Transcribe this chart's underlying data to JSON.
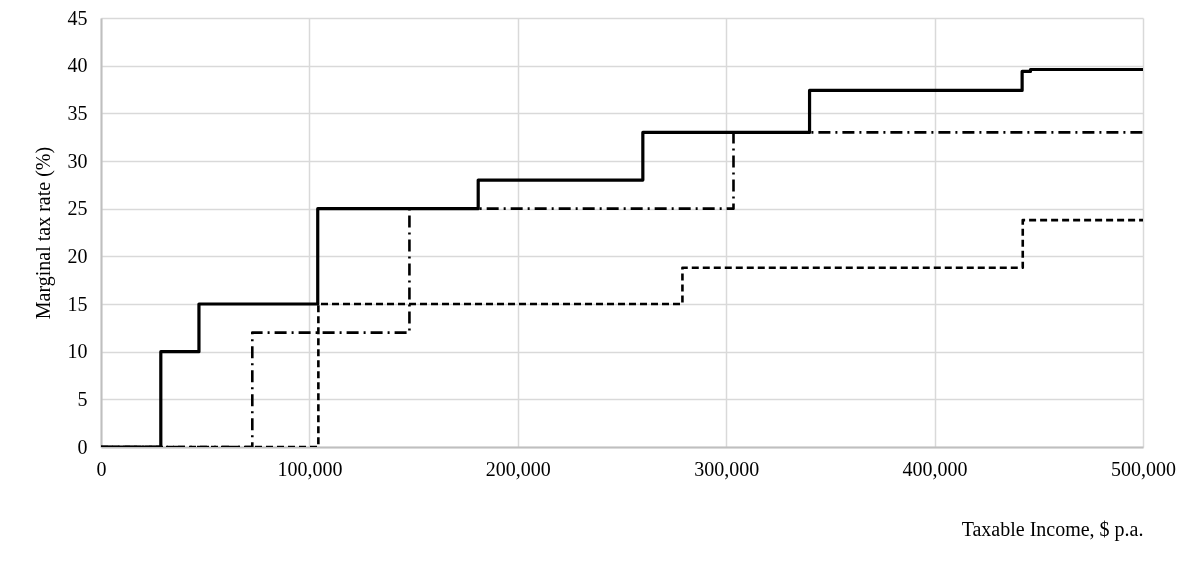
{
  "chart_data": {
    "type": "step",
    "xlabel": "Taxable Income, $ p.a.",
    "ylabel": "Marginal tax rate (%)",
    "xlim": [
      0,
      500000
    ],
    "xticks": [
      0,
      {
        "value": 100000,
        "label": "100,000"
      },
      {
        "value": 200000,
        "label": "200,000"
      },
      {
        "value": 300000,
        "label": "300,000"
      },
      {
        "value": 400000,
        "label": "400,000"
      },
      {
        "value": 500000,
        "label": "500,000"
      }
    ],
    "ylim": [
      0,
      45
    ],
    "yticks": [
      0,
      5,
      10,
      15,
      20,
      25,
      30,
      35,
      40,
      45
    ],
    "grid": true,
    "series": [
      {
        "color": "#000000",
        "line_style": "solid",
        "x": [
          0,
          28700,
          47000,
          104000,
          181000,
          260000,
          340000,
          442000,
          446000,
          500000
        ],
        "values": [
          0,
          10,
          15,
          25,
          28,
          33,
          37.4,
          39.4,
          39.6,
          39.6
        ]
      },
      {
        "color": "#000000",
        "line_style": "dashdot",
        "x": [
          0,
          72600,
          148000,
          303500,
          500000
        ],
        "values": [
          0,
          12,
          25,
          33,
          33
        ]
      },
      {
        "color": "#000000",
        "line_style": "dashed",
        "x": [
          0,
          104300,
          279000,
          442300,
          500000
        ],
        "values": [
          0,
          15,
          18.8,
          23.8,
          23.8
        ]
      }
    ]
  }
}
